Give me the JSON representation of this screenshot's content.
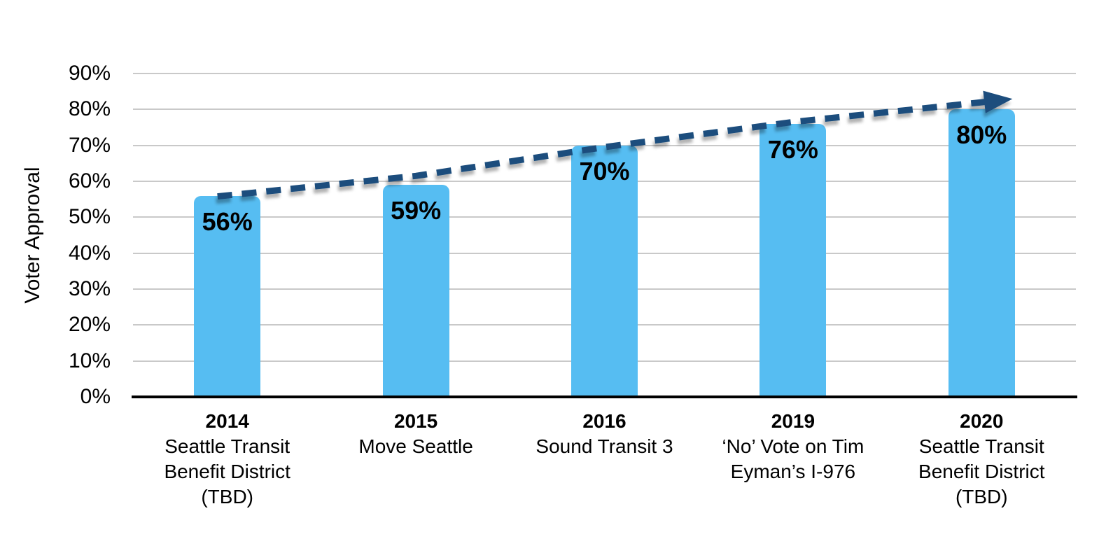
{
  "figure": {
    "background": "#FFFFFF"
  },
  "chart_data": {
    "type": "bar",
    "title": "",
    "xlabel": "",
    "ylabel": "Voter Approval",
    "ylim": [
      0,
      90
    ],
    "ytick_step": 10,
    "ytick_suffix": "%",
    "grid": true,
    "legend": null,
    "categories": [
      {
        "year": "2014",
        "label_lines": [
          "Seattle Transit",
          "Benefit District",
          "(TBD)"
        ]
      },
      {
        "year": "2015",
        "label_lines": [
          "Move Seattle"
        ]
      },
      {
        "year": "2016",
        "label_lines": [
          "Sound Transit 3"
        ]
      },
      {
        "year": "2019",
        "label_lines": [
          "‘No’ Vote on Tim",
          "Eyman’s I-976"
        ]
      },
      {
        "year": "2020",
        "label_lines": [
          "Seattle Transit",
          "Benefit District",
          "(TBD)"
        ]
      }
    ],
    "values": [
      56,
      59,
      70,
      76,
      80
    ],
    "value_labels": [
      "56%",
      "59%",
      "70%",
      "76%",
      "80%"
    ],
    "trend_arrow": {
      "style": "dashed",
      "color": "#1B4E7D",
      "values_pct": [
        55.8,
        61.5,
        69.5,
        76.5,
        82.0
      ]
    },
    "colors": {
      "bar_fill": "#56BDF2",
      "gridline": "#C9C9C9",
      "axis_line": "#000000",
      "label_text": "#000000"
    }
  }
}
